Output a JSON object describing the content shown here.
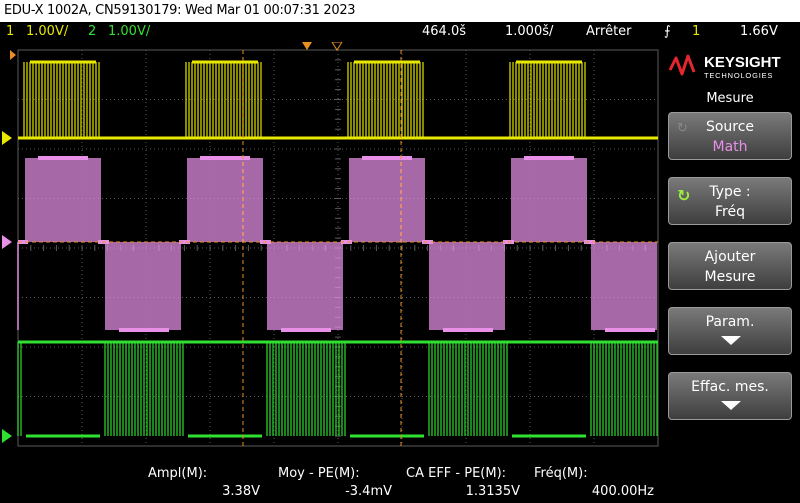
{
  "title": "EDU-X 1002A, CN59130179: Wed Mar 01 00:07:31 2023",
  "status": {
    "ch1_num": "1",
    "ch1_scale": "1.00V/",
    "ch2_num": "2",
    "ch2_scale": "1.00V/",
    "timebase_pos": "464.0š",
    "timebase_scale": "1.000š/",
    "run_state": "Arrêter",
    "trig_src": "1",
    "trig_level": "1.66V"
  },
  "brand": {
    "name": "KEYSIGHT",
    "sub": "TECHNOLOGIES"
  },
  "menu": {
    "title": "Mesure",
    "softkeys": [
      {
        "line1": "Source",
        "line2": "Math"
      },
      {
        "line1": "Type :",
        "line2": "Fréq"
      },
      {
        "line1": "Ajouter",
        "line2": "Mesure"
      },
      {
        "line1": "Param."
      },
      {
        "line1": "Effac. mes."
      }
    ]
  },
  "measurements": [
    {
      "label": "Ampl(M):",
      "value": "3.38V"
    },
    {
      "label": "Moy - PE(M):",
      "value": "-3.4mV"
    },
    {
      "label": "CA EFF - PE(M):",
      "value": "1.3135V"
    },
    {
      "label": "Fréq(M):",
      "value": "400.00Hz"
    }
  ],
  "colors": {
    "ch1": "#e8e800",
    "ch2": "#30e030",
    "math": "#e890e8",
    "cursor": "#e89020",
    "grid": "#5a5a5a"
  }
}
